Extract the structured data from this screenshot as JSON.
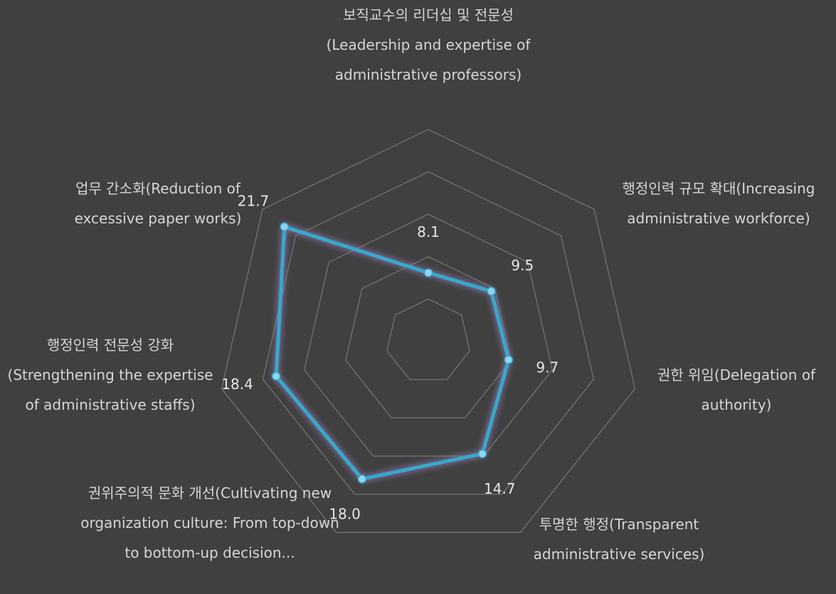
{
  "chart_data": {
    "type": "radar",
    "categories": [
      "보직교수의 리더십 및 전문성(Leadership and expertise of administrative professors)",
      "행정인력 규모 확대(Increasing administrative workforce)",
      "권한 위임(Delegation of authority)",
      "투명한 행정(Transparent administrative services)",
      "권위주의적 문화 개선(Cultivating new organization culture: From top-down to bottom-up decision...",
      "행정인력 전문성 강화(Strengthening the expertise of administrative staffs)",
      "업무 간소화(Reduction of excessive paper works)"
    ],
    "values": [
      8.1,
      9.5,
      9.7,
      14.7,
      18.0,
      18.4,
      21.7
    ],
    "value_labels": [
      "8.1",
      "9.5",
      "9.7",
      "14.7",
      "18.0",
      "18.4",
      "21.7"
    ],
    "color": "#36a9cc",
    "ylim": [
      0,
      25
    ],
    "yticks": [
      0,
      5,
      10,
      15,
      20,
      25
    ],
    "grid": true
  }
}
